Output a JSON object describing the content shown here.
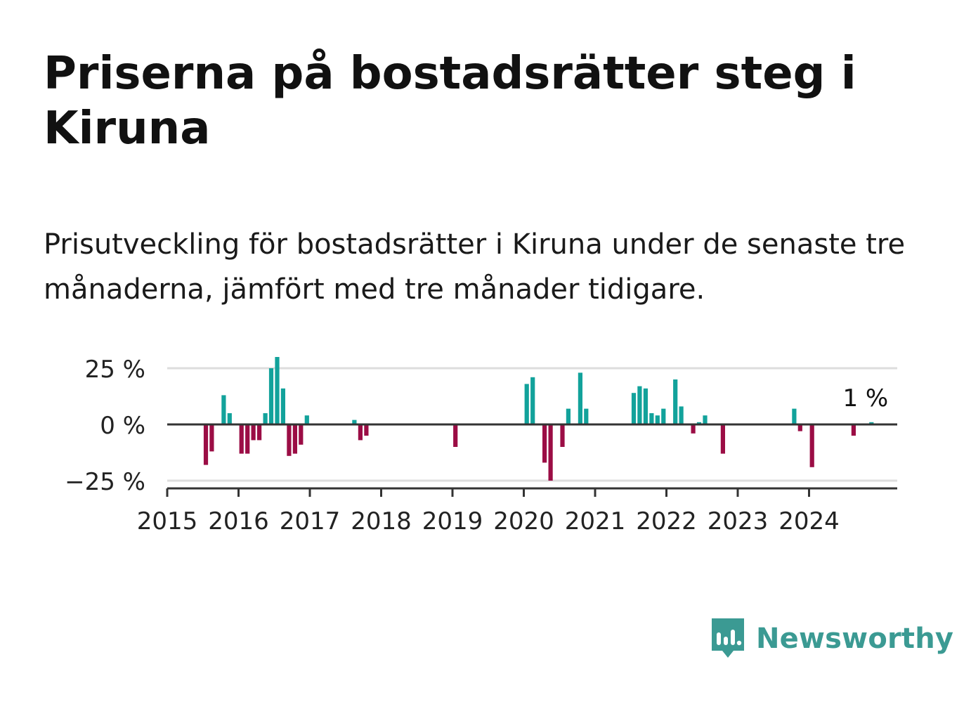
{
  "title": "Priserna på bostadsrätter steg i Kiruna",
  "subtitle": "Prisutveckling för bostadsrätter i Kiruna under de senaste tre månaderna, jämfört med tre månader tidigare.",
  "brand": {
    "name": "Newsworthy",
    "color": "#3b9a93",
    "icon": "newsworthy-logo-icon"
  },
  "colors": {
    "positive": "#12a29b",
    "negative": "#9b0d45",
    "grid": "#dddddd",
    "axis": "#333333"
  },
  "chart_data": {
    "type": "bar",
    "title": "Priserna på bostadsrätter steg i Kiruna",
    "xlabel": "",
    "ylabel": "",
    "ylim": [
      -27,
      32
    ],
    "yticks": [
      -25,
      0,
      25
    ],
    "ytick_labels": [
      "−25 %",
      "0 %",
      "25 %"
    ],
    "grid": true,
    "x_start": "2015-01",
    "x_end": "2024-12",
    "xtick_labels": [
      "2015",
      "2016",
      "2017",
      "2018",
      "2019",
      "2020",
      "2021",
      "2022",
      "2023",
      "2024"
    ],
    "annotation": "1 %",
    "annotation_index": 117,
    "series": [
      {
        "name": "Prisutveckling",
        "values": [
          0,
          0,
          0,
          0,
          0,
          0,
          -18,
          -12,
          0,
          13,
          5,
          0,
          -13,
          -13,
          -7,
          -7,
          5,
          25,
          30,
          16,
          -14,
          -13,
          -9,
          4,
          0,
          0,
          0,
          0,
          0,
          0,
          0,
          2,
          -7,
          -5,
          0,
          0,
          0,
          0,
          0,
          0,
          0,
          0,
          0,
          0,
          0,
          0,
          0,
          0,
          -10,
          0,
          0,
          0,
          0,
          0,
          0,
          0,
          0,
          0,
          0,
          0,
          18,
          21,
          0,
          -17,
          -25,
          0,
          -10,
          7,
          0,
          23,
          7,
          0,
          0,
          0,
          0,
          0,
          0,
          0,
          14,
          17,
          16,
          5,
          4,
          7,
          0,
          20,
          8,
          0,
          -4,
          1,
          4,
          0,
          0,
          -13,
          0,
          0,
          0,
          0,
          0,
          0,
          0,
          0,
          0,
          0,
          0,
          7,
          -3,
          0,
          -19,
          0,
          0,
          0,
          0,
          0,
          0,
          -5,
          0,
          0,
          1,
          0
        ]
      }
    ]
  }
}
